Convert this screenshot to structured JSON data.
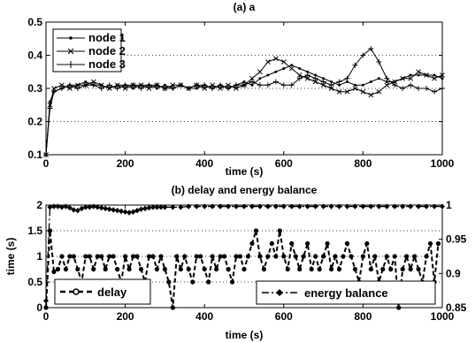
{
  "chart_data": [
    {
      "type": "line",
      "title": "(a) a",
      "xlabel": "time (s)",
      "ylabel": "",
      "xlim": [
        0,
        1000
      ],
      "ylim": [
        0.1,
        0.5
      ],
      "xticks": [
        "0",
        "200",
        "400",
        "600",
        "800",
        "1000"
      ],
      "yticks": [
        "0.1",
        "0.2",
        "0.3",
        "0.4",
        "0.5"
      ],
      "grid": "dotted horizontal",
      "legend": "top-left",
      "x": [
        0,
        10,
        20,
        40,
        60,
        80,
        100,
        120,
        140,
        160,
        180,
        200,
        220,
        240,
        260,
        280,
        300,
        320,
        340,
        360,
        380,
        400,
        420,
        440,
        460,
        480,
        500,
        520,
        540,
        560,
        580,
        600,
        620,
        640,
        660,
        680,
        700,
        720,
        740,
        760,
        780,
        800,
        820,
        840,
        860,
        880,
        900,
        920,
        940,
        960,
        980,
        1000
      ],
      "series": [
        {
          "name": "node 1",
          "marker": "dot",
          "values": [
            0.1,
            0.26,
            0.29,
            0.3,
            0.31,
            0.31,
            0.32,
            0.31,
            0.31,
            0.3,
            0.31,
            0.31,
            0.3,
            0.31,
            0.31,
            0.3,
            0.31,
            0.3,
            0.31,
            0.3,
            0.3,
            0.31,
            0.3,
            0.31,
            0.3,
            0.31,
            0.32,
            0.31,
            0.33,
            0.34,
            0.35,
            0.36,
            0.37,
            0.36,
            0.35,
            0.34,
            0.33,
            0.32,
            0.31,
            0.32,
            0.31,
            0.31,
            0.32,
            0.33,
            0.32,
            0.32,
            0.33,
            0.34,
            0.34,
            0.34,
            0.34,
            0.33
          ]
        },
        {
          "name": "node 2",
          "marker": "x",
          "values": [
            0.1,
            0.25,
            0.3,
            0.31,
            0.3,
            0.31,
            0.31,
            0.32,
            0.31,
            0.3,
            0.31,
            0.3,
            0.31,
            0.31,
            0.3,
            0.31,
            0.3,
            0.31,
            0.31,
            0.3,
            0.31,
            0.3,
            0.31,
            0.3,
            0.31,
            0.3,
            0.31,
            0.33,
            0.35,
            0.38,
            0.39,
            0.38,
            0.36,
            0.34,
            0.33,
            0.32,
            0.31,
            0.3,
            0.29,
            0.29,
            0.3,
            0.29,
            0.28,
            0.29,
            0.31,
            0.32,
            0.33,
            0.33,
            0.35,
            0.34,
            0.33,
            0.34
          ]
        },
        {
          "name": "node 3",
          "marker": "plus",
          "values": [
            0.1,
            0.24,
            0.29,
            0.3,
            0.31,
            0.3,
            0.31,
            0.31,
            0.3,
            0.31,
            0.3,
            0.31,
            0.31,
            0.3,
            0.31,
            0.31,
            0.3,
            0.3,
            0.31,
            0.3,
            0.31,
            0.31,
            0.3,
            0.31,
            0.3,
            0.31,
            0.31,
            0.32,
            0.31,
            0.31,
            0.32,
            0.31,
            0.31,
            0.33,
            0.34,
            0.33,
            0.32,
            0.31,
            0.32,
            0.33,
            0.37,
            0.4,
            0.42,
            0.38,
            0.33,
            0.31,
            0.3,
            0.31,
            0.3,
            0.3,
            0.29,
            0.3
          ]
        }
      ]
    },
    {
      "type": "line",
      "title": "(b) delay and energy balance",
      "xlabel": "time (s)",
      "ylabel": "time (s)",
      "xlim": [
        0,
        1000
      ],
      "ylim": [
        0,
        2
      ],
      "y2lim": [
        0.85,
        1.0
      ],
      "xticks": [
        "0",
        "200",
        "400",
        "600",
        "800",
        "1000"
      ],
      "yticks": [
        "0",
        "0.5",
        "1",
        "1.5",
        "2"
      ],
      "y2ticks": [
        "0.85",
        "0.9",
        "0.95",
        "1"
      ],
      "grid": "dotted horizontal",
      "legend": "bottom",
      "delay": {
        "name": "delay",
        "axis": "left",
        "x": [
          0,
          10,
          20,
          30,
          40,
          50,
          60,
          70,
          80,
          90,
          100,
          110,
          120,
          130,
          140,
          150,
          160,
          170,
          180,
          190,
          200,
          210,
          220,
          230,
          240,
          250,
          260,
          270,
          280,
          290,
          300,
          310,
          320,
          330,
          340,
          350,
          360,
          370,
          380,
          390,
          400,
          410,
          420,
          430,
          440,
          450,
          460,
          470,
          480,
          490,
          500,
          510,
          520,
          530,
          540,
          550,
          560,
          570,
          580,
          590,
          600,
          610,
          620,
          630,
          640,
          650,
          660,
          670,
          680,
          690,
          700,
          710,
          720,
          730,
          740,
          750,
          760,
          770,
          780,
          790,
          800,
          810,
          820,
          830,
          840,
          850,
          860,
          870,
          880,
          890,
          900,
          910,
          920,
          930,
          940,
          950,
          960,
          970,
          980,
          990
        ],
        "values": [
          0,
          1.5,
          0.7,
          0.75,
          1,
          0.75,
          1,
          1,
          0.75,
          0.5,
          1,
          1,
          0.75,
          1,
          1,
          0.75,
          1,
          1,
          0.75,
          0.5,
          1,
          0.75,
          1,
          1,
          0.75,
          0.5,
          1,
          1,
          0.75,
          1,
          0.75,
          0.5,
          0,
          1,
          0.75,
          1,
          0.75,
          0.5,
          1,
          1,
          0.75,
          0.5,
          1,
          0.75,
          1,
          1,
          0.75,
          0.5,
          1,
          1,
          0.75,
          1,
          1.25,
          1.5,
          1,
          0.75,
          1,
          1.25,
          1,
          1.5,
          1,
          0.75,
          1.25,
          1,
          0.75,
          1,
          1.25,
          0.75,
          1,
          0.75,
          1,
          1.25,
          0.75,
          1,
          0.75,
          1,
          1.25,
          1,
          0.75,
          0.5,
          1,
          1.25,
          0.75,
          1,
          0.5,
          0.75,
          1,
          0.75,
          1,
          0,
          0.75,
          1,
          0.75,
          1,
          0.75,
          0.5,
          1,
          1.25,
          0.5,
          1.25
        ]
      },
      "energy_balance": {
        "name": "energy balance",
        "axis": "right",
        "x": [
          0,
          10,
          20,
          30,
          40,
          50,
          60,
          70,
          80,
          90,
          100,
          110,
          120,
          130,
          140,
          150,
          160,
          170,
          180,
          190,
          200,
          210,
          220,
          230,
          240,
          250,
          260,
          270,
          280,
          290,
          300,
          320,
          340,
          360,
          380,
          400,
          420,
          440,
          460,
          480,
          500,
          520,
          540,
          560,
          580,
          600,
          620,
          640,
          660,
          680,
          700,
          720,
          740,
          760,
          780,
          800,
          820,
          840,
          860,
          880,
          900,
          920,
          940,
          960,
          980,
          1000
        ],
        "values": [
          0.86,
          0.997,
          0.998,
          0.998,
          0.997,
          0.998,
          0.996,
          0.993,
          0.992,
          0.995,
          0.997,
          0.997,
          0.998,
          0.997,
          0.996,
          0.995,
          0.994,
          0.993,
          0.992,
          0.991,
          0.99,
          0.989,
          0.99,
          0.992,
          0.994,
          0.995,
          0.996,
          0.997,
          0.997,
          0.997,
          0.997,
          0.997,
          0.997,
          0.998,
          0.998,
          0.998,
          0.998,
          0.998,
          0.998,
          0.998,
          0.998,
          0.998,
          0.998,
          0.998,
          0.998,
          0.998,
          0.998,
          0.998,
          0.998,
          0.998,
          0.998,
          0.998,
          0.998,
          0.998,
          0.998,
          0.998,
          0.998,
          0.998,
          0.998,
          0.998,
          0.998,
          0.998,
          0.998,
          0.998,
          0.998,
          0.998
        ]
      }
    }
  ]
}
